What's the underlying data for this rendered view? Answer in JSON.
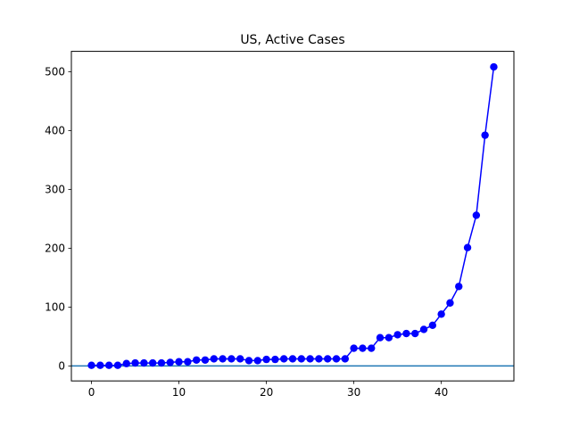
{
  "chart_data": {
    "type": "line",
    "title": "US, Active Cases",
    "xlabel": "",
    "ylabel": "",
    "xlim": [
      -2.3,
      48.3
    ],
    "ylim": [
      -25.5,
      534.5
    ],
    "xticks": [
      0,
      10,
      20,
      30,
      40
    ],
    "yticks": [
      0,
      100,
      200,
      300,
      400,
      500
    ],
    "grid": false,
    "legend": "none",
    "series": [
      {
        "color": "#0000ff",
        "marker": "circle",
        "x": [
          0,
          1,
          2,
          3,
          4,
          5,
          6,
          7,
          8,
          9,
          10,
          11,
          12,
          13,
          14,
          15,
          16,
          17,
          18,
          19,
          20,
          21,
          22,
          23,
          24,
          25,
          26,
          27,
          28,
          29,
          30,
          31,
          32,
          33,
          34,
          35,
          36,
          37,
          38,
          39,
          40,
          41,
          42,
          43,
          44,
          45,
          46
        ],
        "y": [
          1,
          1,
          1,
          1,
          4,
          5,
          5,
          5,
          5,
          6,
          7,
          7,
          10,
          10,
          12,
          12,
          12,
          12,
          9,
          9,
          11,
          11,
          12,
          12,
          12,
          12,
          12,
          12,
          12,
          12,
          30,
          30,
          30,
          48,
          48,
          53,
          55,
          55,
          62,
          69,
          88,
          107,
          135,
          201,
          256,
          392,
          508
        ]
      }
    ],
    "hlines": [
      {
        "y": 0,
        "color": "#1f77b4"
      }
    ]
  }
}
